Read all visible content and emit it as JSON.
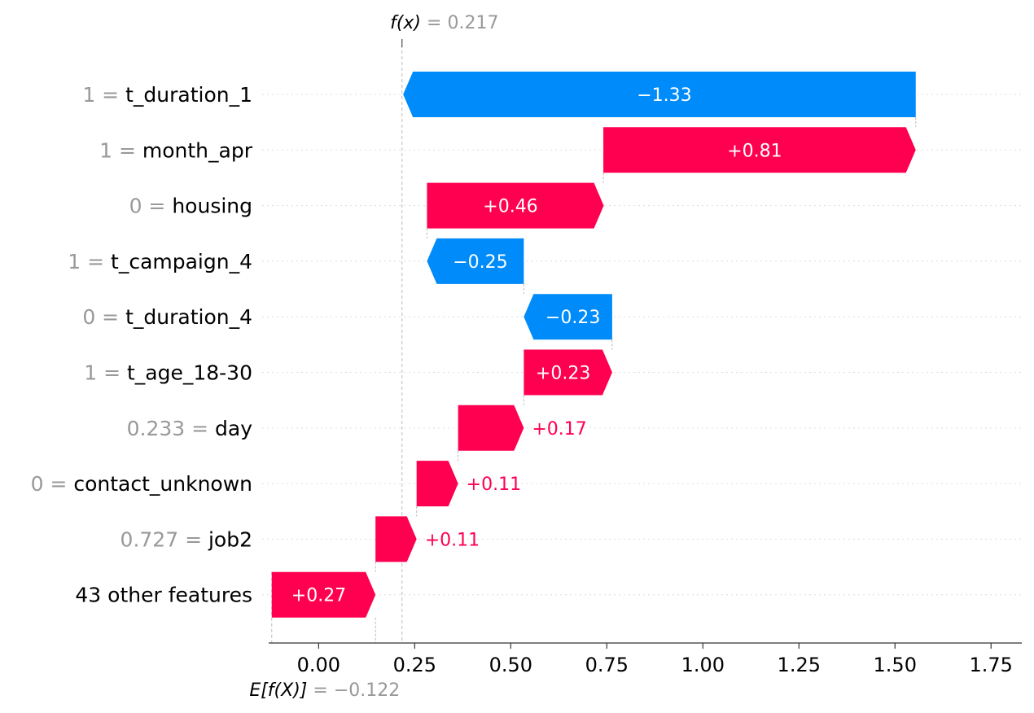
{
  "colors": {
    "positive": "#ff0051",
    "negative": "#008bfb",
    "muted": "#999999",
    "text": "#000000"
  },
  "chart_data": {
    "type": "waterfall",
    "fx_label": "f(x)",
    "fx_value": "0.217",
    "fx_number": 0.217,
    "ex_label": "E[f(X)]",
    "ex_value": "−0.122",
    "ex_number": -0.122,
    "xlim": [
      -0.13,
      1.83
    ],
    "xticks": [
      0.0,
      0.25,
      0.5,
      0.75,
      1.0,
      1.25,
      1.5,
      1.75
    ],
    "xtick_labels": [
      "0.00",
      "0.25",
      "0.50",
      "0.75",
      "1.00",
      "1.25",
      "1.50",
      "1.75"
    ],
    "features": [
      {
        "value": "1",
        "name": "t_duration_1",
        "start": 1.554,
        "end": 0.22,
        "label": "−1.33",
        "sign": "neg"
      },
      {
        "value": "1",
        "name": "month_apr",
        "start": 0.741,
        "end": 1.554,
        "label": "+0.81",
        "sign": "pos"
      },
      {
        "value": "0",
        "name": "housing",
        "start": 0.282,
        "end": 0.742,
        "label": "+0.46",
        "sign": "pos"
      },
      {
        "value": "1",
        "name": "t_campaign_4",
        "start": 0.534,
        "end": 0.282,
        "label": "−0.25",
        "sign": "neg"
      },
      {
        "value": "0",
        "name": "t_duration_4",
        "start": 0.764,
        "end": 0.534,
        "label": "−0.23",
        "sign": "neg"
      },
      {
        "value": "1",
        "name": "t_age_18-30",
        "start": 0.534,
        "end": 0.764,
        "label": "+0.23",
        "sign": "pos"
      },
      {
        "value": "0.233",
        "name": "day",
        "start": 0.363,
        "end": 0.534,
        "label": "+0.17",
        "sign": "pos"
      },
      {
        "value": "0",
        "name": "contact_unknown",
        "start": 0.255,
        "end": 0.363,
        "label": "+0.11",
        "sign": "pos"
      },
      {
        "value": "0.727",
        "name": "job2",
        "start": 0.148,
        "end": 0.255,
        "label": "+0.11",
        "sign": "pos"
      },
      {
        "value": "",
        "name": "43 other features",
        "start": -0.122,
        "end": 0.148,
        "label": "+0.27",
        "sign": "pos"
      }
    ]
  }
}
